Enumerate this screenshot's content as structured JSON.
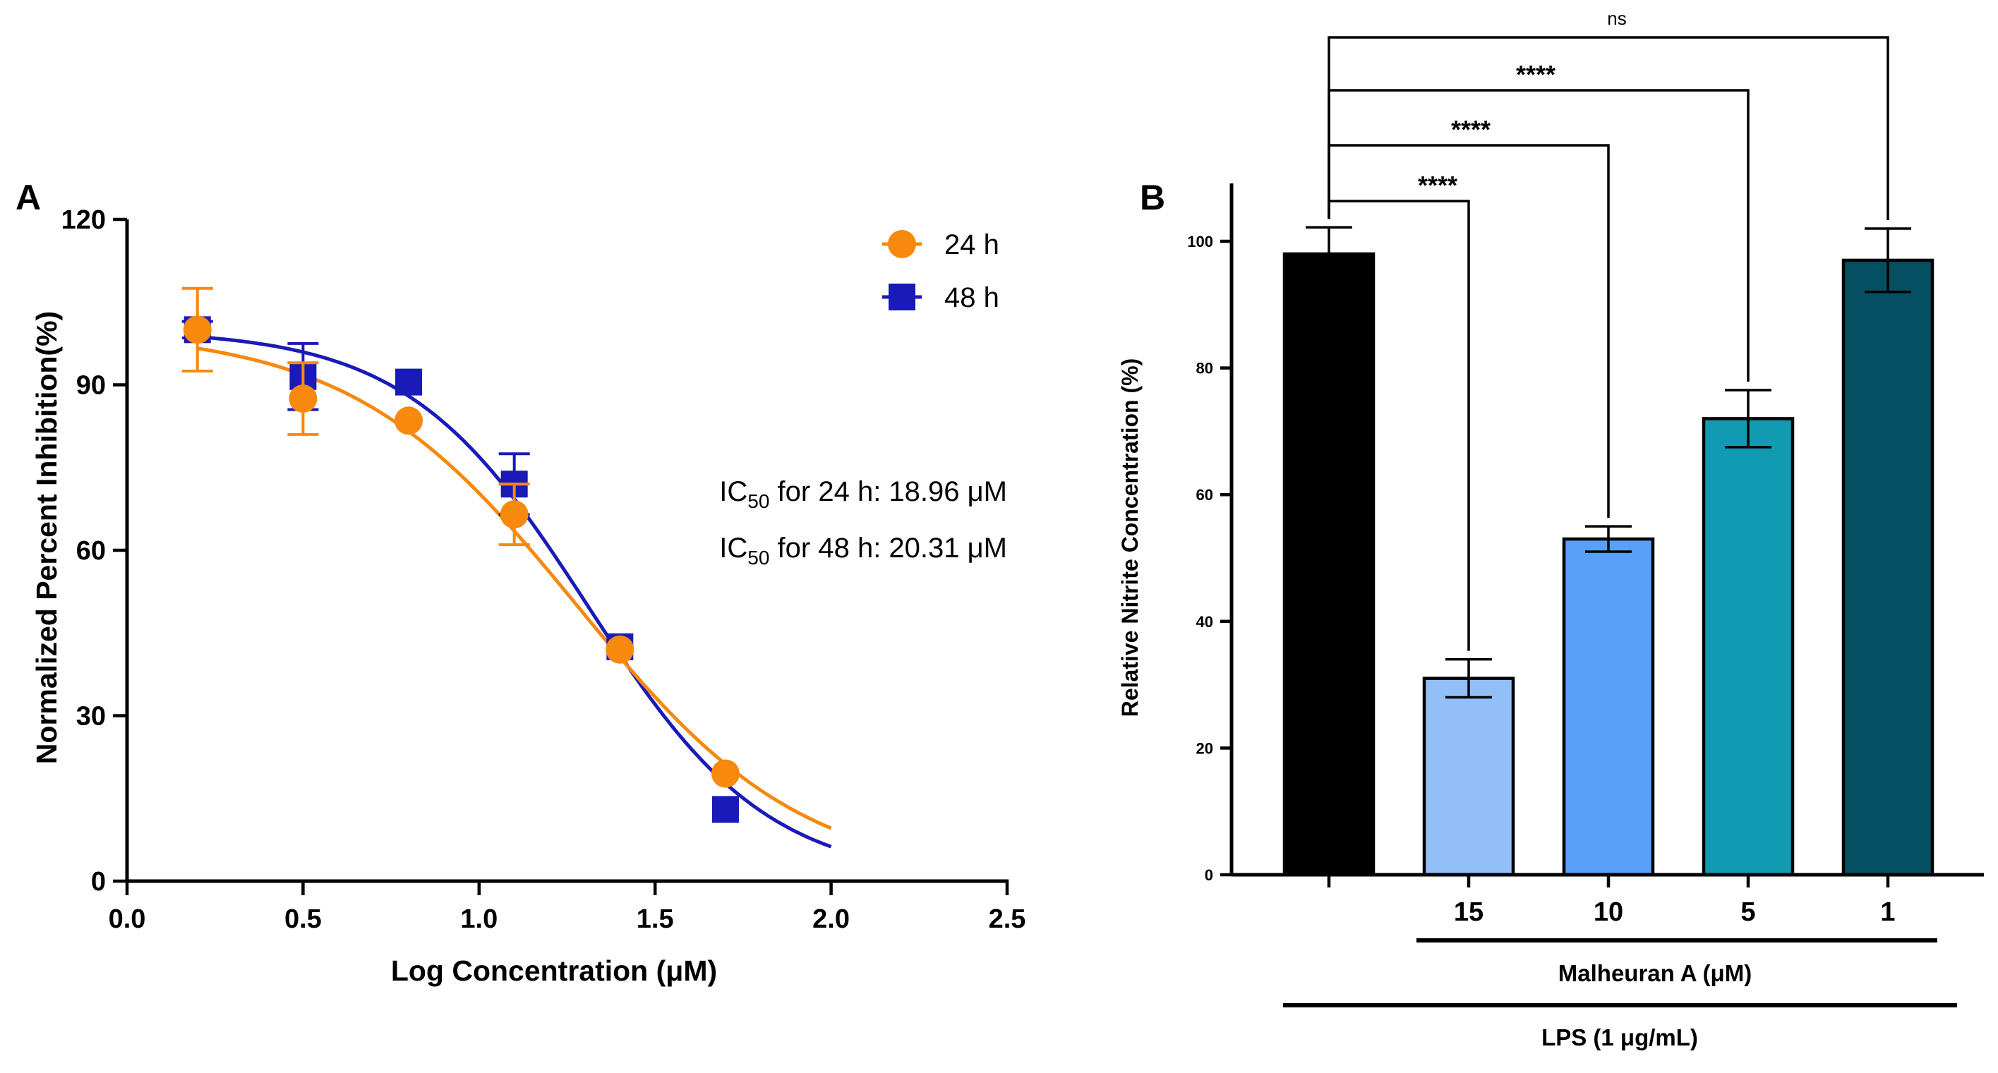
{
  "chart_data": [
    {
      "panel": "A",
      "type": "scatter",
      "xlabel": "Log Concentration (μM)",
      "ylabel": "Normalized Percent Inhibition(%)",
      "xlim": [
        0,
        2.5
      ],
      "ylim": [
        0,
        120
      ],
      "x_ticks": [
        "0.0",
        "0.5",
        "1.0",
        "1.5",
        "2.0",
        "2.5"
      ],
      "y_ticks": [
        "0",
        "30",
        "60",
        "90",
        "120"
      ],
      "legend_position": "top-right",
      "series": [
        {
          "name": "24 h",
          "color": "#f7890f",
          "marker": "circle",
          "x": [
            0.2,
            0.5,
            0.8,
            1.1,
            1.4,
            1.7
          ],
          "y": [
            100,
            87.5,
            83.5,
            66.5,
            42,
            19.5
          ],
          "err": [
            7.5,
            6.5,
            1.0,
            5.5,
            1.0,
            1.0
          ],
          "fit": {
            "top": 100,
            "bottom": 0,
            "logEC50": 1.278,
            "hill": 1.35
          }
        },
        {
          "name": "48 h",
          "color": "#1a1ab8",
          "marker": "square",
          "x": [
            0.2,
            0.5,
            0.8,
            1.1,
            1.4,
            1.7
          ],
          "y": [
            100,
            91.5,
            90.5,
            72,
            42.5,
            13
          ],
          "err": [
            1.5,
            6.0,
            1.0,
            5.5,
            1.0,
            1.0
          ],
          "fit": {
            "top": 100,
            "bottom": 0,
            "logEC50": 1.308,
            "hill": 1.7
          }
        }
      ],
      "annotations": [
        {
          "pre": "IC",
          "sub": "50",
          "post": " for 24 h: 18.96 μM"
        },
        {
          "pre": "IC",
          "sub": "50",
          "post": " for 48 h: 20.31 μM"
        }
      ]
    },
    {
      "panel": "B",
      "type": "bar",
      "ylabel": "Relative Nitrite Concentration (%)",
      "ylim": [
        0,
        110
      ],
      "y_ticks": [
        "0",
        "20",
        "40",
        "60",
        "80",
        "100"
      ],
      "categories": [
        "",
        "15",
        "10",
        "5",
        "1"
      ],
      "values": [
        98,
        31,
        53,
        72,
        97
      ],
      "errors": [
        4.2,
        3.0,
        2.0,
        4.5,
        5.0
      ],
      "colors": [
        "#000000",
        "#92bff8",
        "#57a1fb",
        "#109bb3",
        "#054f62"
      ],
      "group_labels": [
        "Malheuran A (μM)",
        "LPS (1 μg/mL)"
      ],
      "significance": [
        {
          "from": 0,
          "to": 1,
          "label": "****"
        },
        {
          "from": 0,
          "to": 2,
          "label": "****"
        },
        {
          "from": 0,
          "to": 3,
          "label": "****"
        },
        {
          "from": 0,
          "to": 4,
          "label": "ns"
        }
      ]
    }
  ]
}
